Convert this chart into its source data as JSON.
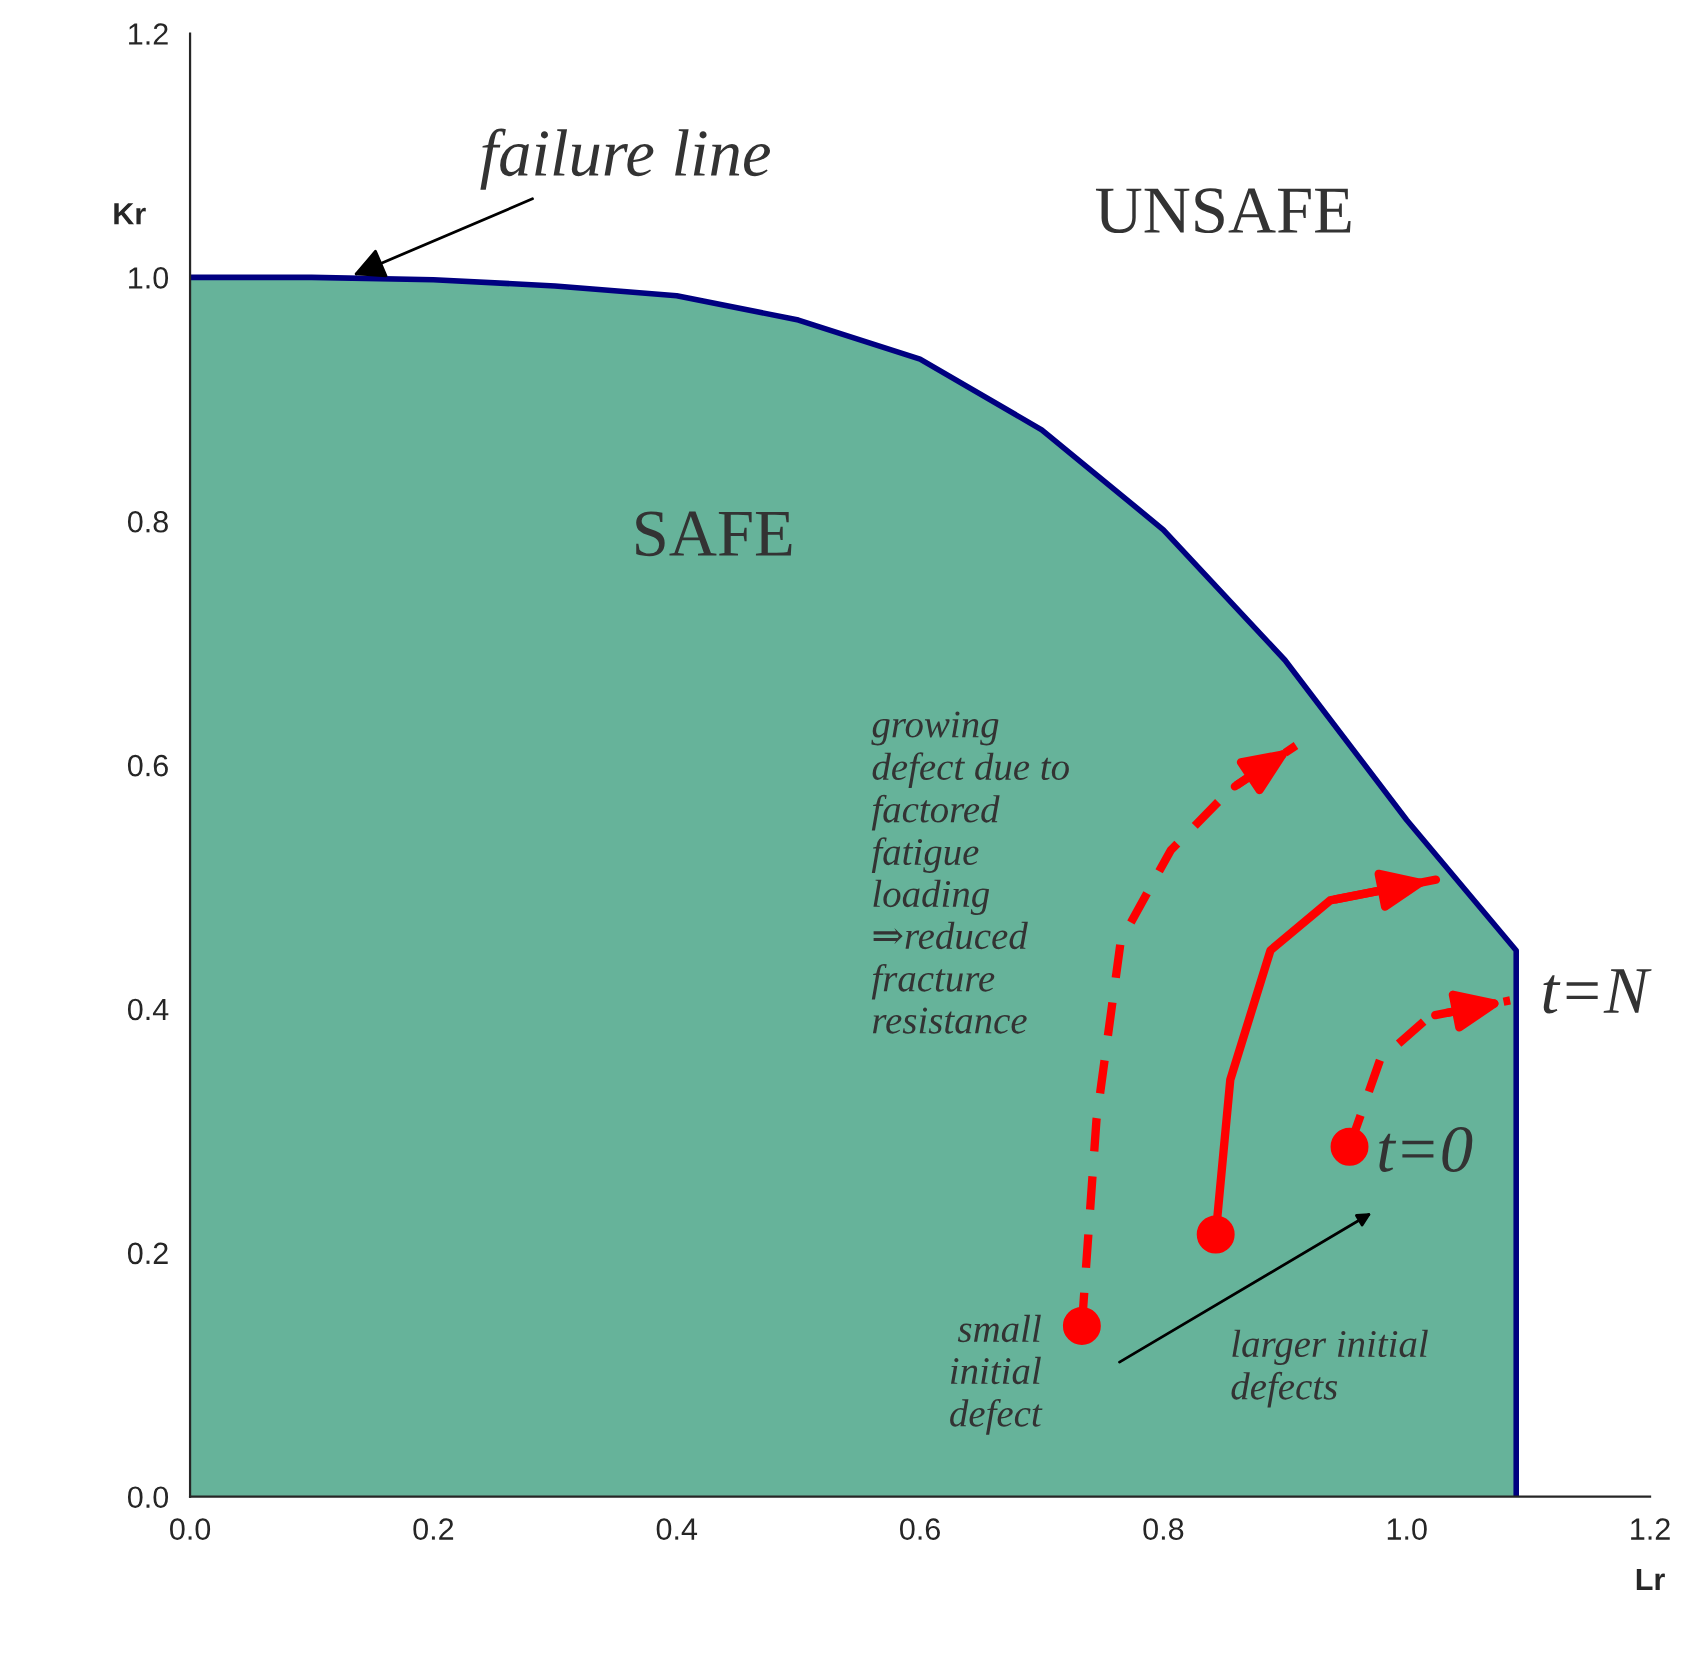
{
  "chart_data": {
    "type": "area",
    "xlabel": "Lr",
    "ylabel": "Kr",
    "xlim": [
      0,
      1.2
    ],
    "ylim": [
      0,
      1.2
    ],
    "xticks": [
      {
        "value": 0,
        "label": "0.0"
      },
      {
        "value": 0.2,
        "label": "0.2"
      },
      {
        "value": 0.4,
        "label": "0.4"
      },
      {
        "value": 0.6,
        "label": "0.6"
      },
      {
        "value": 0.8,
        "label": "0.8"
      },
      {
        "value": 1.0,
        "label": "1.0"
      },
      {
        "value": 1.2,
        "label": "1.2"
      }
    ],
    "yticks": [
      {
        "value": 0,
        "label": "0.0"
      },
      {
        "value": 0.2,
        "label": "0.2"
      },
      {
        "value": 0.4,
        "label": "0.4"
      },
      {
        "value": 0.6,
        "label": "0.6"
      },
      {
        "value": 0.8,
        "label": "0.8"
      },
      {
        "value": 1.0,
        "label": "1.0"
      },
      {
        "value": 1.2,
        "label": "1.2"
      }
    ],
    "grid": false,
    "legend": false,
    "series": [
      {
        "color": "#66b39a",
        "x": [
          0,
          0.1,
          0.2,
          0.3,
          0.4,
          0.5,
          0.6,
          0.7,
          0.8,
          0.9,
          1.0,
          1.09,
          1.09
        ],
        "values": [
          1.0,
          1.0,
          0.998,
          0.993,
          0.985,
          0.965,
          0.933,
          0.875,
          0.793,
          0.686,
          0.555,
          0.448,
          0
        ]
      },
      {
        "type": "line",
        "color": "#ff0000",
        "line_style": "dashed",
        "x": [
          0.733,
          0.745,
          0.765,
          0.806,
          0.855,
          0.909
        ],
        "values": [
          0.14,
          0.309,
          0.456,
          0.53,
          0.58,
          0.616
        ]
      },
      {
        "type": "line",
        "color": "#ff0000",
        "line_style": "solid",
        "x": [
          0.843,
          0.855,
          0.888,
          0.937,
          1.024
        ],
        "values": [
          0.215,
          0.342,
          0.448,
          0.489,
          0.506
        ]
      },
      {
        "type": "line",
        "color": "#ff0000",
        "line_style": "dashed",
        "x": [
          0.953,
          0.978,
          1.019,
          1.085
        ],
        "values": [
          0.287,
          0.358,
          0.394,
          0.407
        ]
      },
      {
        "type": "scatter",
        "color": "#ff0000",
        "marker": "circle",
        "x": [
          0.733,
          0.843,
          0.953
        ],
        "values": [
          0.14,
          0.215,
          0.287
        ]
      }
    ],
    "annotations": [
      {
        "text": "failure line",
        "x": 0.13,
        "y": 1.0
      },
      "UNSAFE",
      "SAFE",
      "growing\ndefect due to\nfactored\nfatigue\nloading\n⇒reduced\nfracture\nresistance",
      "t=N",
      {
        "text": "t=0",
        "x": 0.975,
        "y": 0.28
      },
      "small\ninitial\ndefect",
      "larger initial\ndefects"
    ]
  }
}
